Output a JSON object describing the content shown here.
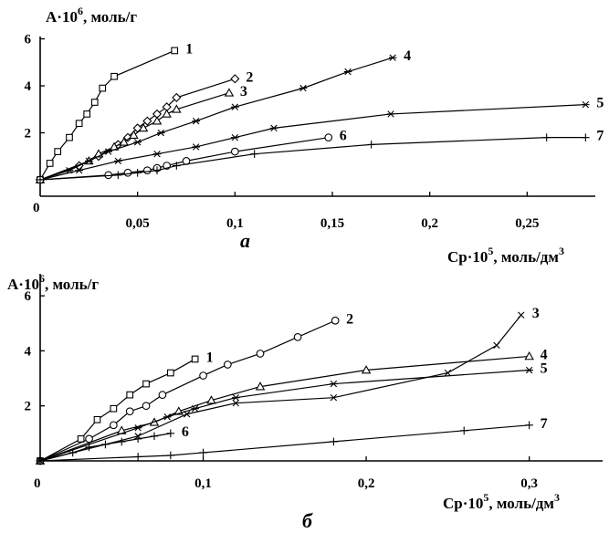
{
  "chart_data": [
    {
      "type": "line",
      "caption": "а",
      "ylabel": {
        "base": "A·10",
        "exp": "6",
        "unit": ", моль/г"
      },
      "xlabel": {
        "base": "Cp·10",
        "exp": "5",
        "unit": ", моль/дм",
        "unit_exp": "3"
      },
      "xlim": [
        0,
        0.285
      ],
      "ylim": [
        -0.7,
        6.1
      ],
      "xticks": [
        {
          "v": 0.05,
          "label": "0,05"
        },
        {
          "v": 0.1,
          "label": "0,1"
        },
        {
          "v": 0.15,
          "label": "0,15"
        },
        {
          "v": 0.2,
          "label": "0,2"
        },
        {
          "v": 0.25,
          "label": "0,25"
        }
      ],
      "yticks": [
        {
          "v": 2,
          "label": "2"
        },
        {
          "v": 4,
          "label": "4"
        },
        {
          "v": 6,
          "label": "6"
        }
      ],
      "origin_label": "0",
      "series": [
        {
          "name": "1",
          "marker": "square",
          "x": [
            0,
            0.005,
            0.009,
            0.015,
            0.02,
            0.024,
            0.028,
            0.032,
            0.038,
            0.069
          ],
          "y": [
            0,
            0.7,
            1.2,
            1.8,
            2.4,
            2.8,
            3.3,
            3.9,
            4.4,
            5.5
          ]
        },
        {
          "name": "2",
          "marker": "diamond",
          "x": [
            0,
            0.02,
            0.03,
            0.04,
            0.045,
            0.05,
            0.055,
            0.06,
            0.065,
            0.07,
            0.1
          ],
          "y": [
            0,
            0.6,
            1.0,
            1.5,
            1.8,
            2.2,
            2.5,
            2.8,
            3.1,
            3.5,
            4.3
          ]
        },
        {
          "name": "3",
          "marker": "triangle",
          "x": [
            0,
            0.025,
            0.03,
            0.038,
            0.043,
            0.048,
            0.053,
            0.06,
            0.065,
            0.07,
            0.097
          ],
          "y": [
            0,
            0.8,
            1.1,
            1.4,
            1.6,
            1.9,
            2.2,
            2.5,
            2.8,
            3.0,
            3.7
          ]
        },
        {
          "name": "4",
          "marker": "star",
          "x": [
            0,
            0.015,
            0.025,
            0.035,
            0.05,
            0.062,
            0.08,
            0.1,
            0.135,
            0.158,
            0.181
          ],
          "y": [
            0,
            0.4,
            0.8,
            1.2,
            1.6,
            2.0,
            2.5,
            3.1,
            3.9,
            4.6,
            5.2
          ]
        },
        {
          "name": "5",
          "marker": "star",
          "x": [
            0,
            0.02,
            0.04,
            0.06,
            0.08,
            0.1,
            0.12,
            0.18,
            0.28
          ],
          "y": [
            0,
            0.4,
            0.8,
            1.1,
            1.4,
            1.8,
            2.2,
            2.8,
            3.2
          ]
        },
        {
          "name": "6",
          "marker": "circle",
          "x": [
            0,
            0.035,
            0.045,
            0.055,
            0.06,
            0.065,
            0.075,
            0.1,
            0.148
          ],
          "y": [
            0,
            0.2,
            0.3,
            0.4,
            0.5,
            0.6,
            0.8,
            1.2,
            1.8
          ]
        },
        {
          "name": "7",
          "marker": "plus",
          "x": [
            0,
            0.04,
            0.05,
            0.06,
            0.07,
            0.11,
            0.17,
            0.26,
            0.28
          ],
          "y": [
            0,
            0.2,
            0.3,
            0.4,
            0.6,
            1.1,
            1.5,
            1.8,
            1.8
          ]
        }
      ]
    },
    {
      "type": "line",
      "caption": "б",
      "ylabel": {
        "base": "A·10",
        "exp": "6",
        "unit": ", моль/г"
      },
      "xlabel": {
        "base": "Cp·10",
        "exp": "5",
        "unit": ", моль/дм",
        "unit_exp": "3"
      },
      "xlim": [
        0,
        0.345
      ],
      "ylim": [
        0,
        6.8
      ],
      "xticks": [
        {
          "v": 0.1,
          "label": "0,1"
        },
        {
          "v": 0.2,
          "label": "0,2"
        },
        {
          "v": 0.3,
          "label": "0,3"
        }
      ],
      "yticks": [
        {
          "v": 2,
          "label": "2"
        },
        {
          "v": 4,
          "label": "4"
        },
        {
          "v": 6,
          "label": "6"
        }
      ],
      "origin_label": "0",
      "series": [
        {
          "name": "1",
          "marker": "square",
          "x": [
            0,
            0.025,
            0.035,
            0.045,
            0.055,
            0.065,
            0.08,
            0.095
          ],
          "y": [
            0,
            0.8,
            1.5,
            1.9,
            2.4,
            2.8,
            3.2,
            3.7
          ]
        },
        {
          "name": "2",
          "marker": "circle",
          "x": [
            0,
            0.03,
            0.045,
            0.055,
            0.065,
            0.075,
            0.1,
            0.115,
            0.135,
            0.158,
            0.181
          ],
          "y": [
            0,
            0.8,
            1.3,
            1.8,
            2.0,
            2.4,
            3.1,
            3.5,
            3.9,
            4.5,
            5.1
          ]
        },
        {
          "name": "3",
          "marker": "cross",
          "x": [
            0,
            0.06,
            0.09,
            0.12,
            0.18,
            0.25,
            0.28,
            0.295
          ],
          "y": [
            0,
            0.9,
            1.7,
            2.1,
            2.3,
            3.2,
            4.2,
            5.3
          ]
        },
        {
          "name": "4",
          "marker": "triangle",
          "x": [
            0,
            0.05,
            0.07,
            0.085,
            0.105,
            0.135,
            0.2,
            0.3
          ],
          "y": [
            0,
            1.1,
            1.4,
            1.8,
            2.2,
            2.7,
            3.3,
            3.8
          ]
        },
        {
          "name": "5",
          "marker": "star",
          "x": [
            0,
            0.06,
            0.078,
            0.095,
            0.12,
            0.18,
            0.3
          ],
          "y": [
            0,
            1.2,
            1.6,
            1.9,
            2.3,
            2.8,
            3.3
          ]
        },
        {
          "name": "6",
          "marker": "plus",
          "x": [
            0,
            0.02,
            0.03,
            0.04,
            0.05,
            0.06,
            0.07,
            0.08
          ],
          "y": [
            0,
            0.3,
            0.5,
            0.6,
            0.7,
            0.8,
            0.9,
            1.0
          ]
        },
        {
          "name": "7",
          "marker": "plus",
          "x": [
            0,
            0.06,
            0.08,
            0.1,
            0.18,
            0.26,
            0.3
          ],
          "y": [
            0,
            0.15,
            0.2,
            0.3,
            0.7,
            1.1,
            1.3
          ]
        }
      ]
    }
  ]
}
